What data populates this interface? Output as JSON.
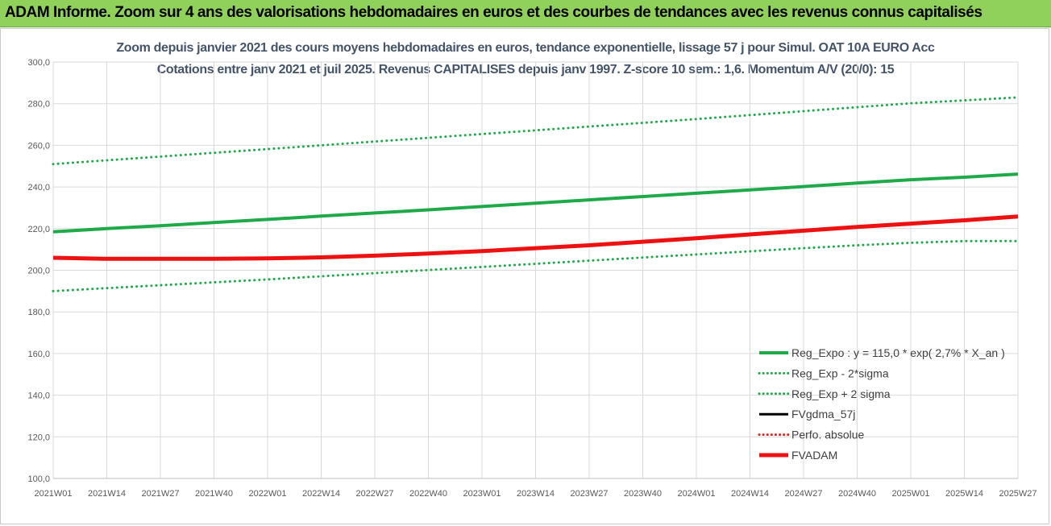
{
  "banner": {
    "title": "ADAM Informe. Zoom sur 4 ans des valorisations hebdomadaires en euros et des courbes de tendances avec les revenus connus capitalisés"
  },
  "chart_data": {
    "type": "line",
    "title": "Zoom depuis janvier 2021 des cours moyens hebdomadaires en euros, tendance exponentielle, lissage 57 j pour Simul. OAT 10A EURO Acc",
    "subtitle": "Cotations entre janv 2021 et juil 2025. Revenus CAPITALISES depuis janv 1997. Z-score 10 sem.: 1,6. Momentum A/V (20/0): 15",
    "xlabel": "",
    "ylabel": "",
    "ylim": [
      100,
      300
    ],
    "yticks": [
      "100,0",
      "120,0",
      "140,0",
      "160,0",
      "180,0",
      "200,0",
      "220,0",
      "240,0",
      "260,0",
      "280,0",
      "300,0"
    ],
    "ytick_values": [
      100,
      120,
      140,
      160,
      180,
      200,
      220,
      240,
      260,
      280,
      300
    ],
    "x_categories": [
      "2021W01",
      "2021W14",
      "2021W27",
      "2021W40",
      "2022W01",
      "2022W14",
      "2022W27",
      "2022W40",
      "2023W01",
      "2023W14",
      "2023W27",
      "2023W40",
      "2024W01",
      "2024W14",
      "2024W27",
      "2024W40",
      "2025W01",
      "2025W14",
      "2025W27"
    ],
    "grid": true,
    "legend_position": "bottom-right",
    "series": [
      {
        "name": "Reg_Expo : y = 115,0 * exp( 2,7% *  X_an )",
        "color": "#1faa4a",
        "style": "solid",
        "width": 4,
        "values": [
          218.5,
          220.0,
          221.4,
          222.9,
          224.4,
          226.0,
          227.5,
          229.0,
          230.6,
          232.2,
          233.8,
          235.4,
          237.0,
          238.6,
          240.2,
          241.9,
          243.5,
          244.7,
          246.2
        ]
      },
      {
        "name": "Reg_Exp - 2*sigma",
        "color": "#1faa4a",
        "style": "dotted",
        "width": 3,
        "values": [
          190.0,
          191.4,
          192.8,
          194.2,
          195.6,
          197.1,
          198.6,
          200.1,
          201.6,
          203.1,
          204.6,
          206.1,
          207.6,
          209.1,
          210.6,
          212.0,
          213.2,
          214.0,
          214.0
        ]
      },
      {
        "name": "Reg_Exp + 2 sigma",
        "color": "#1faa4a",
        "style": "dotted",
        "width": 3,
        "values": [
          251.0,
          252.8,
          254.6,
          256.4,
          258.2,
          260.0,
          261.8,
          263.6,
          265.4,
          267.2,
          269.0,
          270.8,
          272.6,
          274.5,
          276.4,
          278.3,
          280.2,
          281.6,
          283.0
        ]
      },
      {
        "name": "FVgdma_57j",
        "color": "#000000",
        "style": "solid",
        "width": 3,
        "values": []
      },
      {
        "name": "Perfo. absolue",
        "color": "#e02020",
        "style": "dotted",
        "width": 3,
        "values": []
      },
      {
        "name": "FVADAM",
        "color": "#ee1111",
        "style": "solid",
        "width": 5,
        "values": [
          206.0,
          205.5,
          205.5,
          205.5,
          205.7,
          206.2,
          207.0,
          208.0,
          209.2,
          210.6,
          212.0,
          213.7,
          215.4,
          217.2,
          219.0,
          220.8,
          222.4,
          224.0,
          225.8
        ]
      }
    ]
  }
}
